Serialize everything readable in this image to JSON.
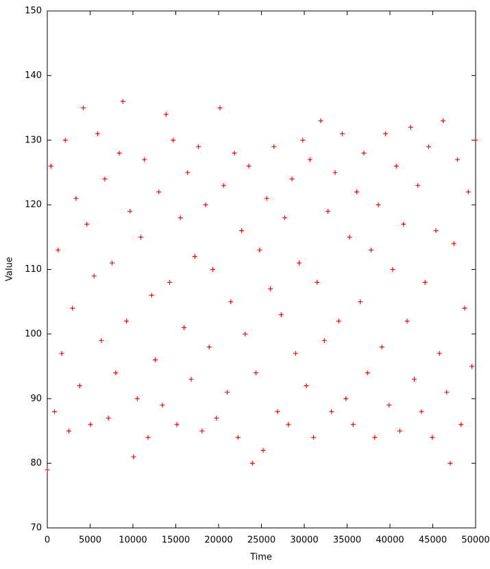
{
  "chart_data": {
    "type": "scatter",
    "x_label": "Time",
    "y_label": "Value",
    "color": "#ff0000",
    "marker": "+",
    "xlim": [
      0,
      50000
    ],
    "ylim": [
      70,
      150
    ],
    "xticks": [
      0,
      5000,
      10000,
      15000,
      20000,
      25000,
      30000,
      35000,
      40000,
      45000,
      50000
    ],
    "yticks": [
      70,
      80,
      90,
      100,
      110,
      120,
      130,
      140,
      150
    ],
    "x": [
      0,
      420,
      840,
      1260,
      1680,
      2100,
      2520,
      2940,
      3360,
      3780,
      4200,
      4620,
      5040,
      5460,
      5880,
      6300,
      6720,
      7140,
      7560,
      7980,
      8400,
      8820,
      9240,
      9660,
      10080,
      10500,
      10920,
      11340,
      11760,
      12180,
      12600,
      13020,
      13440,
      13860,
      14280,
      14700,
      15120,
      15540,
      15960,
      16380,
      16800,
      17220,
      17640,
      18060,
      18480,
      18900,
      19320,
      19740,
      20160,
      20580,
      21000,
      21420,
      21840,
      22260,
      22680,
      23100,
      23520,
      23940,
      24360,
      24780,
      25200,
      25620,
      26040,
      26460,
      26880,
      27300,
      27720,
      28140,
      28560,
      28980,
      29400,
      29820,
      30240,
      30660,
      31080,
      31500,
      31920,
      32340,
      32760,
      33180,
      33600,
      34020,
      34440,
      34860,
      35280,
      35700,
      36120,
      36540,
      36960,
      37380,
      37800,
      38220,
      38640,
      39060,
      39480,
      39900,
      40320,
      40740,
      41160,
      41580,
      42000,
      42420,
      42840,
      43260,
      43680,
      44100,
      44520,
      44940,
      45360,
      45780,
      46200,
      46620,
      47040,
      47460,
      47880,
      48300,
      48720,
      49140,
      49560,
      49980
    ],
    "values": [
      79,
      126,
      88,
      113,
      97,
      130,
      85,
      104,
      121,
      92,
      135,
      117,
      86,
      109,
      131,
      99,
      124,
      87,
      111,
      94,
      128,
      136,
      102,
      119,
      81,
      90,
      115,
      127,
      84,
      106,
      96,
      122,
      89,
      134,
      108,
      130,
      86,
      118,
      101,
      125,
      93,
      112,
      129,
      85,
      120,
      98,
      110,
      87,
      135,
      123,
      91,
      105,
      128,
      84,
      116,
      100,
      126,
      80,
      94,
      113,
      82,
      121,
      107,
      129,
      88,
      103,
      118,
      86,
      124,
      97,
      111,
      130,
      92,
      127,
      84,
      108,
      133,
      99,
      119,
      88,
      125,
      102,
      131,
      90,
      115,
      86,
      122,
      105,
      128,
      94,
      113,
      84,
      120,
      98,
      131,
      89,
      110,
      126,
      85,
      117,
      102,
      132,
      93,
      123,
      88,
      108,
      129,
      84,
      116,
      97,
      133,
      91,
      80,
      114,
      127,
      86,
      104,
      122,
      95,
      130
    ]
  }
}
